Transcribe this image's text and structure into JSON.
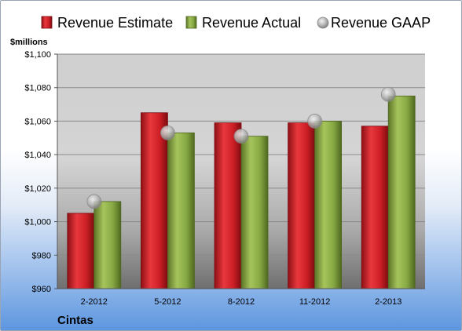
{
  "chart_data": {
    "type": "bar",
    "company": "Cintas",
    "unit_label": "$millions",
    "categories": [
      "2-2012",
      "5-2012",
      "8-2012",
      "11-2012",
      "2-2013"
    ],
    "series": [
      {
        "name": "Revenue Estimate",
        "kind": "bar",
        "color": "#cc1f25",
        "values": [
          1005,
          1065,
          1059,
          1059,
          1057
        ]
      },
      {
        "name": "Revenue Actual",
        "kind": "bar",
        "color": "#7f9f3c",
        "values": [
          1012,
          1053,
          1051,
          1060,
          1075
        ]
      },
      {
        "name": "Revenue GAAP",
        "kind": "marker",
        "color": "#a6a6a6",
        "values": [
          1012,
          1053,
          1051,
          1060,
          1076
        ]
      }
    ],
    "ylim": [
      960,
      1100
    ],
    "y_ticks": [
      960,
      980,
      1000,
      1020,
      1040,
      1060,
      1080,
      1100
    ],
    "y_tick_labels": [
      "$960",
      "$980",
      "$1,000",
      "$1,020",
      "$1,040",
      "$1,060",
      "$1,080",
      "$1,100"
    ],
    "grid": true,
    "legend_position": "top"
  }
}
